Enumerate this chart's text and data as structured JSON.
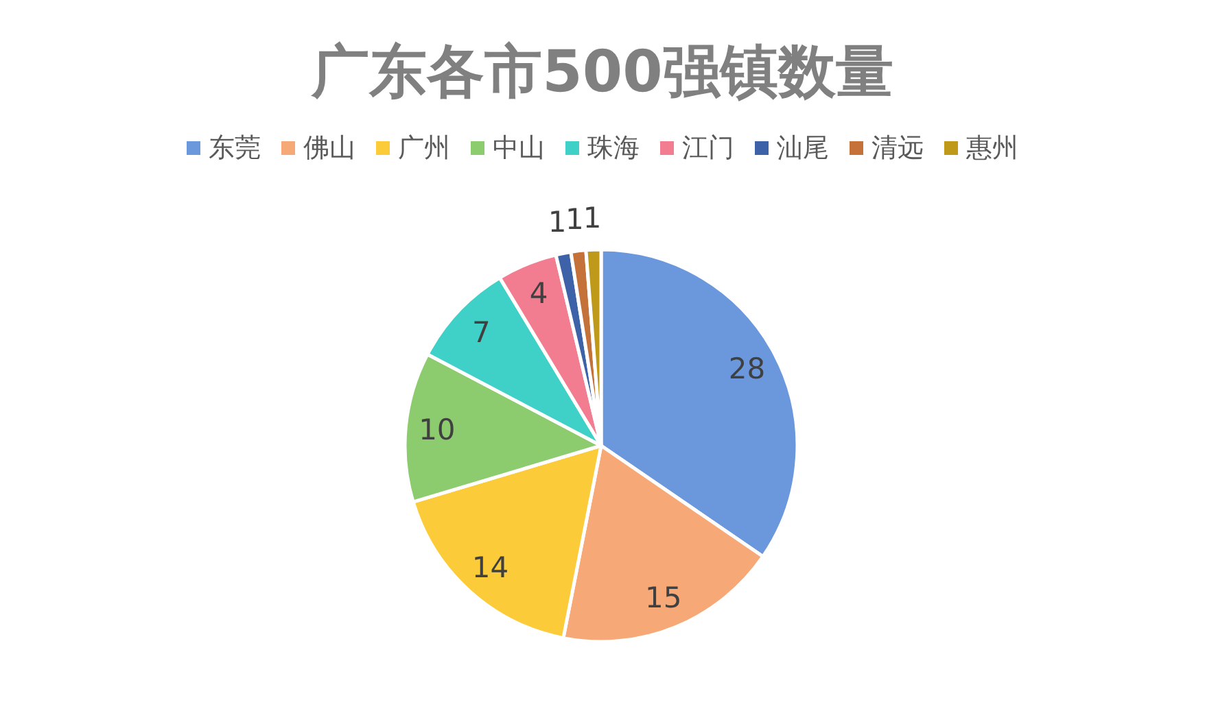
{
  "chart_data": {
    "type": "pie",
    "title": "广东各市500强镇数量",
    "categories": [
      "东莞",
      "佛山",
      "广州",
      "中山",
      "珠海",
      "江门",
      "汕尾",
      "清远",
      "惠州"
    ],
    "values": [
      28,
      15,
      14,
      10,
      7,
      4,
      1,
      1,
      1
    ],
    "colors": [
      "#6b97dc",
      "#f7a877",
      "#fccb3a",
      "#8ccb6e",
      "#3fd0c8",
      "#f27d90",
      "#3d62a8",
      "#c4713a",
      "#bf9a1a"
    ],
    "data_labels": true,
    "legend": "top"
  }
}
